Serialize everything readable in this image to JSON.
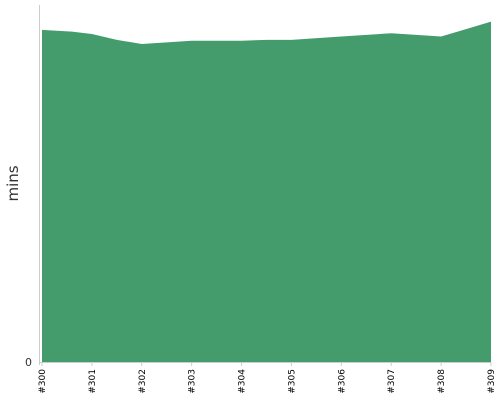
{
  "chart_data": {
    "type": "area",
    "title": "",
    "xlabel": "",
    "ylabel": "mins",
    "categories": [
      "#300",
      "#301",
      "#302",
      "#303",
      "#304",
      "#305",
      "#306",
      "#307",
      "#308",
      "#309"
    ],
    "ylim": [
      0,
      21.5
    ],
    "yticks": [
      {
        "value": 0,
        "label": "0"
      }
    ],
    "grid": false,
    "series": [
      {
        "color": "#449c6d",
        "points": [
          {
            "x": 0,
            "y": 20.0
          },
          {
            "x": 0.6,
            "y": 19.9
          },
          {
            "x": 1.0,
            "y": 19.75
          },
          {
            "x": 1.5,
            "y": 19.4
          },
          {
            "x": 2.0,
            "y": 19.15
          },
          {
            "x": 3.0,
            "y": 19.35
          },
          {
            "x": 4.0,
            "y": 19.35
          },
          {
            "x": 4.5,
            "y": 19.4
          },
          {
            "x": 5.0,
            "y": 19.4
          },
          {
            "x": 6.0,
            "y": 19.6
          },
          {
            "x": 7.0,
            "y": 19.8
          },
          {
            "x": 8.0,
            "y": 19.6
          },
          {
            "x": 8.5,
            "y": 20.05
          },
          {
            "x": 9.0,
            "y": 20.5
          }
        ]
      }
    ]
  }
}
